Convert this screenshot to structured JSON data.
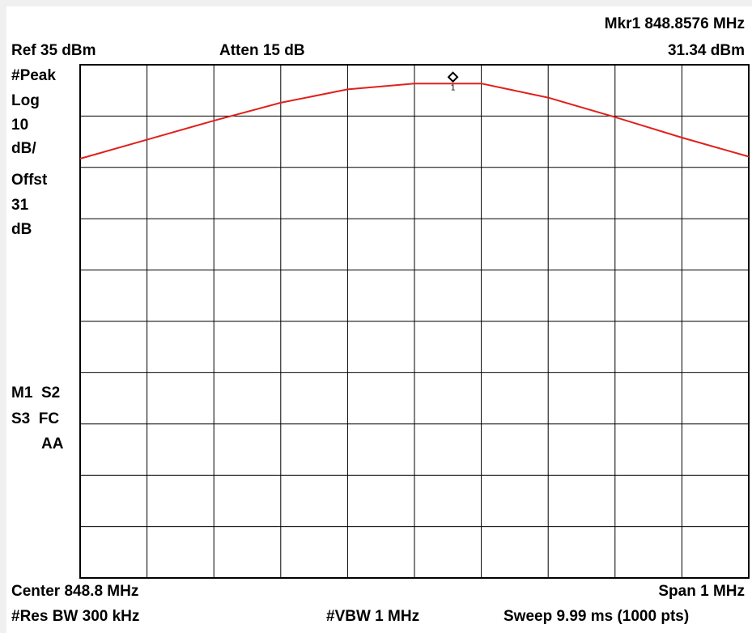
{
  "colors": {
    "trace": "#e0201c",
    "grid": "#000000",
    "background": "#ffffff",
    "frame": "#f0f0f0"
  },
  "header": {
    "marker_label": "Mkr1  848.8576 MHz",
    "ref_level": "Ref 35 dBm",
    "attenuation": "Atten 15 dB",
    "marker_amplitude": "31.34 dBm"
  },
  "side_panel": {
    "lines_top": [
      "#Peak",
      "Log",
      "10",
      "dB/",
      "Offst",
      "31",
      "dB"
    ],
    "lines_bottom": [
      "M1  S2",
      "S3  FC",
      "AA"
    ]
  },
  "footer": {
    "center": "Center 848.8 MHz",
    "span": "Span 1 MHz",
    "res_bw": "#Res BW 300 kHz",
    "vbw": "#VBW 1 MHz",
    "sweep": "Sweep 9.99 ms (1000 pts)"
  },
  "chart_data": {
    "type": "line",
    "xlim": [
      848.3,
      849.3
    ],
    "ylim": [
      -65,
      35
    ],
    "grid": true,
    "x_divisions": 10,
    "y_divisions": 10,
    "series": [
      {
        "x": [
          848.3,
          848.4,
          848.5,
          848.6,
          848.7,
          848.8,
          848.9,
          849.0,
          849.1,
          849.2,
          849.3
        ],
        "values": [
          16.7,
          20.4,
          24.1,
          27.6,
          30.2,
          31.34,
          31.34,
          28.6,
          24.8,
          20.8,
          17.1
        ]
      }
    ],
    "markers": [
      {
        "label": "1",
        "x": 848.8576,
        "y": 31.34
      }
    ]
  }
}
